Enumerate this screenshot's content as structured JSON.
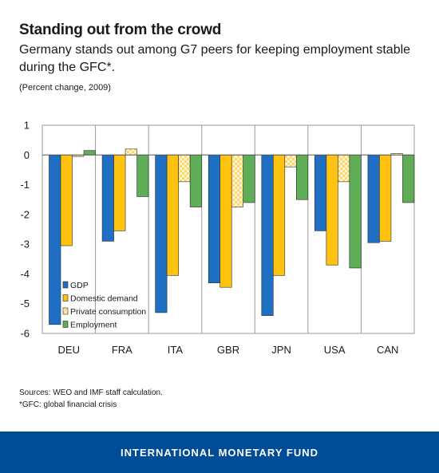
{
  "header": {
    "title": "Standing out from the crowd",
    "subtitle": "Germany stands out among G7 peers for keeping employment stable during the GFC*.",
    "unit_note": "(Percent change, 2009)"
  },
  "notes": {
    "sources": "Sources: WEO and IMF staff calculation.",
    "footnote": "*GFC: global financial crisis"
  },
  "footer": {
    "label": "INTERNATIONAL MONETARY FUND",
    "color": "#004c97"
  },
  "chart_data": {
    "type": "bar",
    "categories": [
      "DEU",
      "FRA",
      "ITA",
      "GBR",
      "JPN",
      "USA",
      "CAN"
    ],
    "ylim": [
      -6,
      1
    ],
    "yticks": [
      1,
      0,
      -1,
      -2,
      -3,
      -4,
      -5,
      -6
    ],
    "grid": false,
    "legend_position": "bottom-left",
    "series": [
      {
        "name": "GDP",
        "color": "#1f6fc5",
        "pattern": "solid",
        "values": [
          -5.7,
          -2.9,
          -5.3,
          -4.3,
          -5.4,
          -2.55,
          -2.95
        ]
      },
      {
        "name": "Domestic demand",
        "color": "#ffc20e",
        "pattern": "solid",
        "values": [
          -3.05,
          -2.55,
          -4.05,
          -4.45,
          -4.05,
          -3.7,
          -2.9
        ]
      },
      {
        "name": "Private consumption",
        "color": "#ffc20e",
        "pattern": "checker",
        "values": [
          -0.05,
          0.2,
          -0.9,
          -1.75,
          -0.4,
          -0.9,
          0.05
        ]
      },
      {
        "name": "Employment",
        "color": "#5fad56",
        "pattern": "solid",
        "values": [
          0.15,
          -1.4,
          -1.75,
          -1.6,
          -1.5,
          -3.8,
          -1.6
        ]
      }
    ]
  }
}
